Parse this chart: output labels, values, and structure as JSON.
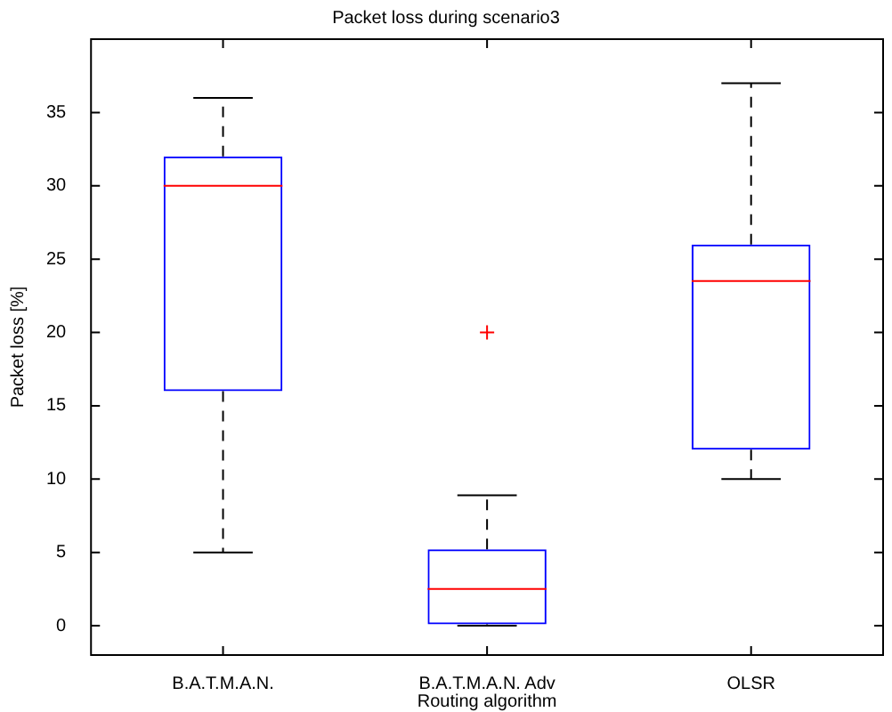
{
  "chart_data": {
    "type": "box",
    "title": "Packet loss during scenario3",
    "xlabel": "Routing algorithm",
    "ylabel": "Packet loss [%]",
    "categories": [
      "B.A.T.M.A.N.",
      "B.A.T.M.A.N. Adv",
      "OLSR"
    ],
    "boxes": [
      {
        "low": 5,
        "q1": 16,
        "median": 30,
        "q3": 32,
        "high": 36
      },
      {
        "low": 0,
        "q1": 0.1,
        "median": 2.5,
        "q3": 5.2,
        "high": 8.9,
        "outliers": [
          20
        ]
      },
      {
        "low": 10,
        "q1": 12,
        "median": 23.5,
        "q3": 26,
        "high": 37
      }
    ],
    "color": "#0000ff",
    "marker": "cross",
    "ylim": [
      -2,
      40
    ],
    "yticks": [
      0,
      5,
      10,
      15,
      20,
      25,
      30,
      35
    ]
  }
}
